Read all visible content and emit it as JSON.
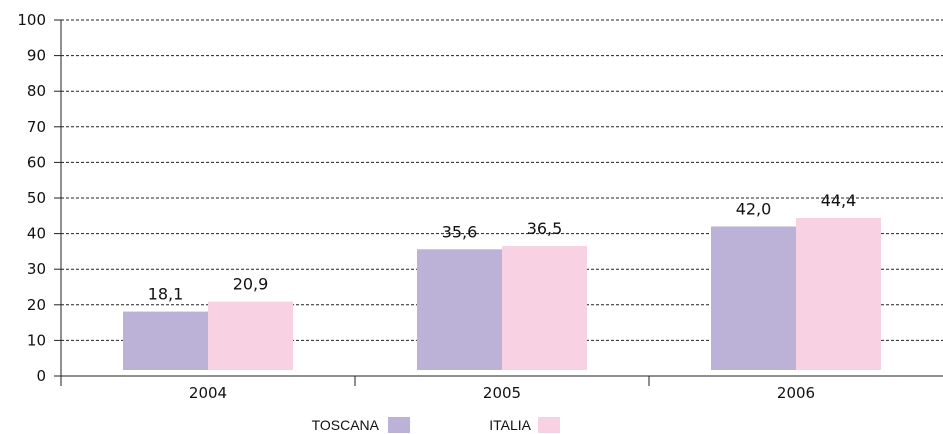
{
  "chart_data": {
    "type": "bar",
    "categories": [
      "2004",
      "2005",
      "2006"
    ],
    "series": [
      {
        "name": "TOSCANA",
        "color": "#bcb1d7",
        "values": [
          18.1,
          35.6,
          42.0
        ],
        "labels": [
          "18,1",
          "35,6",
          "42,0"
        ]
      },
      {
        "name": "ITALIA",
        "color": "#f8d1e2",
        "values": [
          20.9,
          36.5,
          44.4
        ],
        "labels": [
          "20,9",
          "36,5",
          "44,4"
        ]
      }
    ],
    "yticks": [
      "0",
      "10",
      "20",
      "30",
      "40",
      "50",
      "60",
      "70",
      "80",
      "90",
      "100"
    ],
    "ylim": [
      0,
      100
    ],
    "grid": true,
    "legend_position": "bottom-center"
  }
}
